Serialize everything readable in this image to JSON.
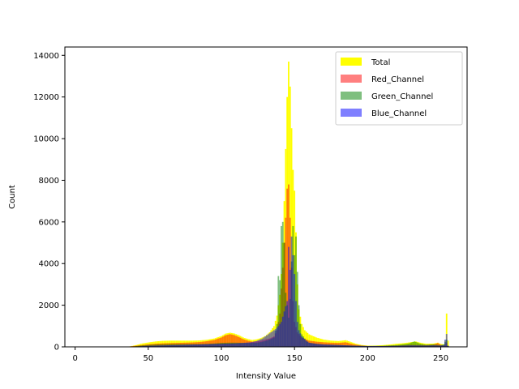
{
  "chart_data": {
    "type": "bar",
    "title": "",
    "xlabel": "Intensity Value",
    "ylabel": "Count",
    "xlim": [
      -7,
      268
    ],
    "ylim": [
      0,
      14400
    ],
    "x_ticks": [
      0,
      50,
      100,
      150,
      200,
      250
    ],
    "y_ticks": [
      0,
      2000,
      4000,
      6000,
      8000,
      10000,
      12000,
      14000
    ],
    "legend_position": "top-right",
    "grid": false,
    "series": [
      {
        "name": "Total",
        "color": "#ffff00",
        "alpha": 1.0,
        "points": [
          [
            0,
            0
          ],
          [
            35,
            0
          ],
          [
            38,
            30
          ],
          [
            42,
            90
          ],
          [
            45,
            150
          ],
          [
            50,
            210
          ],
          [
            55,
            260
          ],
          [
            60,
            290
          ],
          [
            65,
            300
          ],
          [
            70,
            300
          ],
          [
            75,
            300
          ],
          [
            80,
            300
          ],
          [
            85,
            310
          ],
          [
            90,
            340
          ],
          [
            95,
            400
          ],
          [
            100,
            520
          ],
          [
            103,
            640
          ],
          [
            106,
            680
          ],
          [
            109,
            640
          ],
          [
            112,
            560
          ],
          [
            115,
            450
          ],
          [
            118,
            380
          ],
          [
            121,
            330
          ],
          [
            124,
            360
          ],
          [
            127,
            420
          ],
          [
            130,
            520
          ],
          [
            133,
            700
          ],
          [
            136,
            1000
          ],
          [
            138,
            1500
          ],
          [
            140,
            2500
          ],
          [
            141,
            3500
          ],
          [
            142,
            5000
          ],
          [
            143,
            7000
          ],
          [
            144,
            9500
          ],
          [
            145,
            12000
          ],
          [
            146,
            13700
          ],
          [
            147,
            12500
          ],
          [
            148,
            10500
          ],
          [
            149,
            8500
          ],
          [
            150,
            7500
          ],
          [
            151,
            5500
          ],
          [
            152,
            3000
          ],
          [
            153,
            1800
          ],
          [
            155,
            1100
          ],
          [
            157,
            800
          ],
          [
            160,
            600
          ],
          [
            165,
            450
          ],
          [
            170,
            350
          ],
          [
            175,
            300
          ],
          [
            180,
            280
          ],
          [
            185,
            320
          ],
          [
            188,
            250
          ],
          [
            192,
            150
          ],
          [
            196,
            90
          ],
          [
            200,
            60
          ],
          [
            205,
            60
          ],
          [
            210,
            80
          ],
          [
            215,
            110
          ],
          [
            220,
            150
          ],
          [
            225,
            180
          ],
          [
            230,
            230
          ],
          [
            233,
            260
          ],
          [
            236,
            200
          ],
          [
            240,
            150
          ],
          [
            245,
            160
          ],
          [
            248,
            200
          ],
          [
            250,
            140
          ],
          [
            252,
            120
          ],
          [
            253,
            300
          ],
          [
            254,
            1600
          ],
          [
            255,
            300
          ]
        ]
      },
      {
        "name": "Red_Channel",
        "color": "#ff0000",
        "alpha": 0.5,
        "points": [
          [
            0,
            0
          ],
          [
            35,
            0
          ],
          [
            40,
            40
          ],
          [
            45,
            80
          ],
          [
            50,
            120
          ],
          [
            55,
            150
          ],
          [
            60,
            170
          ],
          [
            65,
            180
          ],
          [
            70,
            190
          ],
          [
            75,
            200
          ],
          [
            80,
            210
          ],
          [
            85,
            230
          ],
          [
            90,
            270
          ],
          [
            95,
            330
          ],
          [
            100,
            450
          ],
          [
            103,
            560
          ],
          [
            106,
            610
          ],
          [
            109,
            560
          ],
          [
            112,
            470
          ],
          [
            115,
            370
          ],
          [
            118,
            300
          ],
          [
            121,
            250
          ],
          [
            124,
            260
          ],
          [
            127,
            300
          ],
          [
            130,
            350
          ],
          [
            133,
            400
          ],
          [
            136,
            500
          ],
          [
            138,
            800
          ],
          [
            140,
            1600
          ],
          [
            141,
            2800
          ],
          [
            142,
            3800
          ],
          [
            143,
            5000
          ],
          [
            144,
            6200
          ],
          [
            145,
            7600
          ],
          [
            146,
            7800
          ],
          [
            147,
            6200
          ],
          [
            148,
            3800
          ],
          [
            149,
            2200
          ],
          [
            150,
            1200
          ],
          [
            152,
            700
          ],
          [
            155,
            450
          ],
          [
            158,
            350
          ],
          [
            160,
            300
          ],
          [
            165,
            250
          ],
          [
            170,
            220
          ],
          [
            175,
            200
          ],
          [
            180,
            190
          ],
          [
            185,
            220
          ],
          [
            190,
            130
          ],
          [
            195,
            70
          ],
          [
            200,
            40
          ],
          [
            210,
            40
          ],
          [
            220,
            60
          ],
          [
            230,
            100
          ],
          [
            240,
            90
          ],
          [
            245,
            110
          ],
          [
            248,
            180
          ],
          [
            250,
            100
          ],
          [
            252,
            60
          ],
          [
            254,
            200
          ],
          [
            255,
            50
          ]
        ]
      },
      {
        "name": "Green_Channel",
        "color": "#008000",
        "alpha": 0.5,
        "points": [
          [
            0,
            0
          ],
          [
            38,
            0
          ],
          [
            42,
            40
          ],
          [
            46,
            70
          ],
          [
            50,
            90
          ],
          [
            55,
            110
          ],
          [
            60,
            120
          ],
          [
            65,
            130
          ],
          [
            70,
            130
          ],
          [
            75,
            130
          ],
          [
            80,
            130
          ],
          [
            85,
            130
          ],
          [
            90,
            140
          ],
          [
            95,
            160
          ],
          [
            100,
            190
          ],
          [
            105,
            200
          ],
          [
            110,
            200
          ],
          [
            115,
            190
          ],
          [
            120,
            190
          ],
          [
            124,
            200
          ],
          [
            127,
            230
          ],
          [
            130,
            280
          ],
          [
            133,
            350
          ],
          [
            136,
            450
          ],
          [
            138,
            1100
          ],
          [
            139,
            3400
          ],
          [
            140,
            3200
          ],
          [
            141,
            5800
          ],
          [
            142,
            6000
          ],
          [
            143,
            5000
          ],
          [
            144,
            2600
          ],
          [
            145,
            2000
          ],
          [
            146,
            1400
          ],
          [
            147,
            2300
          ],
          [
            148,
            4100
          ],
          [
            149,
            5800
          ],
          [
            150,
            4400
          ],
          [
            151,
            5300
          ],
          [
            152,
            3600
          ],
          [
            153,
            2000
          ],
          [
            154,
            1100
          ],
          [
            155,
            600
          ],
          [
            158,
            300
          ],
          [
            160,
            200
          ],
          [
            165,
            140
          ],
          [
            170,
            110
          ],
          [
            180,
            90
          ],
          [
            190,
            60
          ],
          [
            200,
            40
          ],
          [
            210,
            50
          ],
          [
            220,
            90
          ],
          [
            228,
            160
          ],
          [
            232,
            260
          ],
          [
            236,
            150
          ],
          [
            240,
            100
          ],
          [
            245,
            120
          ],
          [
            250,
            80
          ],
          [
            252,
            120
          ],
          [
            254,
            350
          ],
          [
            255,
            60
          ]
        ]
      },
      {
        "name": "Blue_Channel",
        "color": "#0000ff",
        "alpha": 0.5,
        "points": [
          [
            0,
            0
          ],
          [
            40,
            0
          ],
          [
            45,
            30
          ],
          [
            50,
            50
          ],
          [
            55,
            60
          ],
          [
            60,
            70
          ],
          [
            65,
            80
          ],
          [
            70,
            90
          ],
          [
            75,
            100
          ],
          [
            80,
            110
          ],
          [
            85,
            120
          ],
          [
            90,
            130
          ],
          [
            95,
            140
          ],
          [
            100,
            150
          ],
          [
            105,
            160
          ],
          [
            110,
            170
          ],
          [
            115,
            190
          ],
          [
            120,
            220
          ],
          [
            124,
            280
          ],
          [
            128,
            400
          ],
          [
            131,
            550
          ],
          [
            134,
            700
          ],
          [
            137,
            850
          ],
          [
            139,
            1000
          ],
          [
            141,
            1200
          ],
          [
            143,
            1700
          ],
          [
            145,
            2200
          ],
          [
            146,
            4800
          ],
          [
            147,
            3700
          ],
          [
            148,
            5300
          ],
          [
            149,
            4400
          ],
          [
            150,
            3500
          ],
          [
            151,
            2200
          ],
          [
            152,
            1200
          ],
          [
            153,
            800
          ],
          [
            155,
            500
          ],
          [
            158,
            300
          ],
          [
            160,
            200
          ],
          [
            165,
            150
          ],
          [
            170,
            120
          ],
          [
            180,
            90
          ],
          [
            190,
            60
          ],
          [
            200,
            40
          ],
          [
            210,
            40
          ],
          [
            220,
            50
          ],
          [
            230,
            70
          ],
          [
            240,
            60
          ],
          [
            245,
            70
          ],
          [
            250,
            60
          ],
          [
            252,
            80
          ],
          [
            254,
            620
          ],
          [
            255,
            40
          ]
        ]
      }
    ]
  }
}
